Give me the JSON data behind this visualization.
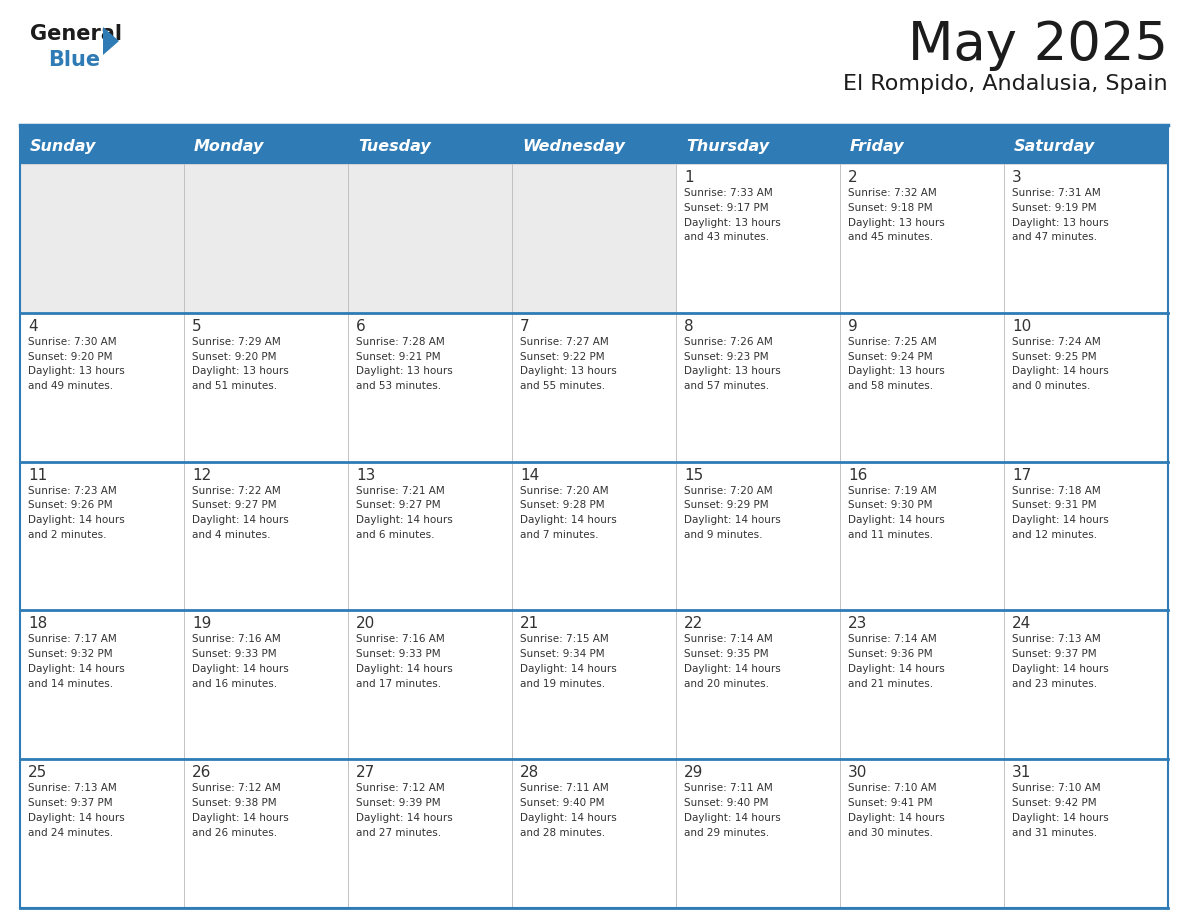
{
  "title": "May 2025",
  "subtitle": "El Rompido, Andalusia, Spain",
  "header_bg": "#2E7BB5",
  "header_text_color": "#FFFFFF",
  "day_names": [
    "Sunday",
    "Monday",
    "Tuesday",
    "Wednesday",
    "Thursday",
    "Friday",
    "Saturday"
  ],
  "cell_bg_empty": "#EBEBEB",
  "cell_bg_filled": "#FFFFFF",
  "border_color": "#2E7BB5",
  "sep_line_color": "#2E7BB5",
  "text_color": "#333333",
  "num_color": "#333333",
  "weeks": [
    [
      {
        "day": null,
        "info": null
      },
      {
        "day": null,
        "info": null
      },
      {
        "day": null,
        "info": null
      },
      {
        "day": null,
        "info": null
      },
      {
        "day": 1,
        "info": "Sunrise: 7:33 AM\nSunset: 9:17 PM\nDaylight: 13 hours\nand 43 minutes."
      },
      {
        "day": 2,
        "info": "Sunrise: 7:32 AM\nSunset: 9:18 PM\nDaylight: 13 hours\nand 45 minutes."
      },
      {
        "day": 3,
        "info": "Sunrise: 7:31 AM\nSunset: 9:19 PM\nDaylight: 13 hours\nand 47 minutes."
      }
    ],
    [
      {
        "day": 4,
        "info": "Sunrise: 7:30 AM\nSunset: 9:20 PM\nDaylight: 13 hours\nand 49 minutes."
      },
      {
        "day": 5,
        "info": "Sunrise: 7:29 AM\nSunset: 9:20 PM\nDaylight: 13 hours\nand 51 minutes."
      },
      {
        "day": 6,
        "info": "Sunrise: 7:28 AM\nSunset: 9:21 PM\nDaylight: 13 hours\nand 53 minutes."
      },
      {
        "day": 7,
        "info": "Sunrise: 7:27 AM\nSunset: 9:22 PM\nDaylight: 13 hours\nand 55 minutes."
      },
      {
        "day": 8,
        "info": "Sunrise: 7:26 AM\nSunset: 9:23 PM\nDaylight: 13 hours\nand 57 minutes."
      },
      {
        "day": 9,
        "info": "Sunrise: 7:25 AM\nSunset: 9:24 PM\nDaylight: 13 hours\nand 58 minutes."
      },
      {
        "day": 10,
        "info": "Sunrise: 7:24 AM\nSunset: 9:25 PM\nDaylight: 14 hours\nand 0 minutes."
      }
    ],
    [
      {
        "day": 11,
        "info": "Sunrise: 7:23 AM\nSunset: 9:26 PM\nDaylight: 14 hours\nand 2 minutes."
      },
      {
        "day": 12,
        "info": "Sunrise: 7:22 AM\nSunset: 9:27 PM\nDaylight: 14 hours\nand 4 minutes."
      },
      {
        "day": 13,
        "info": "Sunrise: 7:21 AM\nSunset: 9:27 PM\nDaylight: 14 hours\nand 6 minutes."
      },
      {
        "day": 14,
        "info": "Sunrise: 7:20 AM\nSunset: 9:28 PM\nDaylight: 14 hours\nand 7 minutes."
      },
      {
        "day": 15,
        "info": "Sunrise: 7:20 AM\nSunset: 9:29 PM\nDaylight: 14 hours\nand 9 minutes."
      },
      {
        "day": 16,
        "info": "Sunrise: 7:19 AM\nSunset: 9:30 PM\nDaylight: 14 hours\nand 11 minutes."
      },
      {
        "day": 17,
        "info": "Sunrise: 7:18 AM\nSunset: 9:31 PM\nDaylight: 14 hours\nand 12 minutes."
      }
    ],
    [
      {
        "day": 18,
        "info": "Sunrise: 7:17 AM\nSunset: 9:32 PM\nDaylight: 14 hours\nand 14 minutes."
      },
      {
        "day": 19,
        "info": "Sunrise: 7:16 AM\nSunset: 9:33 PM\nDaylight: 14 hours\nand 16 minutes."
      },
      {
        "day": 20,
        "info": "Sunrise: 7:16 AM\nSunset: 9:33 PM\nDaylight: 14 hours\nand 17 minutes."
      },
      {
        "day": 21,
        "info": "Sunrise: 7:15 AM\nSunset: 9:34 PM\nDaylight: 14 hours\nand 19 minutes."
      },
      {
        "day": 22,
        "info": "Sunrise: 7:14 AM\nSunset: 9:35 PM\nDaylight: 14 hours\nand 20 minutes."
      },
      {
        "day": 23,
        "info": "Sunrise: 7:14 AM\nSunset: 9:36 PM\nDaylight: 14 hours\nand 21 minutes."
      },
      {
        "day": 24,
        "info": "Sunrise: 7:13 AM\nSunset: 9:37 PM\nDaylight: 14 hours\nand 23 minutes."
      }
    ],
    [
      {
        "day": 25,
        "info": "Sunrise: 7:13 AM\nSunset: 9:37 PM\nDaylight: 14 hours\nand 24 minutes."
      },
      {
        "day": 26,
        "info": "Sunrise: 7:12 AM\nSunset: 9:38 PM\nDaylight: 14 hours\nand 26 minutes."
      },
      {
        "day": 27,
        "info": "Sunrise: 7:12 AM\nSunset: 9:39 PM\nDaylight: 14 hours\nand 27 minutes."
      },
      {
        "day": 28,
        "info": "Sunrise: 7:11 AM\nSunset: 9:40 PM\nDaylight: 14 hours\nand 28 minutes."
      },
      {
        "day": 29,
        "info": "Sunrise: 7:11 AM\nSunset: 9:40 PM\nDaylight: 14 hours\nand 29 minutes."
      },
      {
        "day": 30,
        "info": "Sunrise: 7:10 AM\nSunset: 9:41 PM\nDaylight: 14 hours\nand 30 minutes."
      },
      {
        "day": 31,
        "info": "Sunrise: 7:10 AM\nSunset: 9:42 PM\nDaylight: 14 hours\nand 31 minutes."
      }
    ]
  ]
}
